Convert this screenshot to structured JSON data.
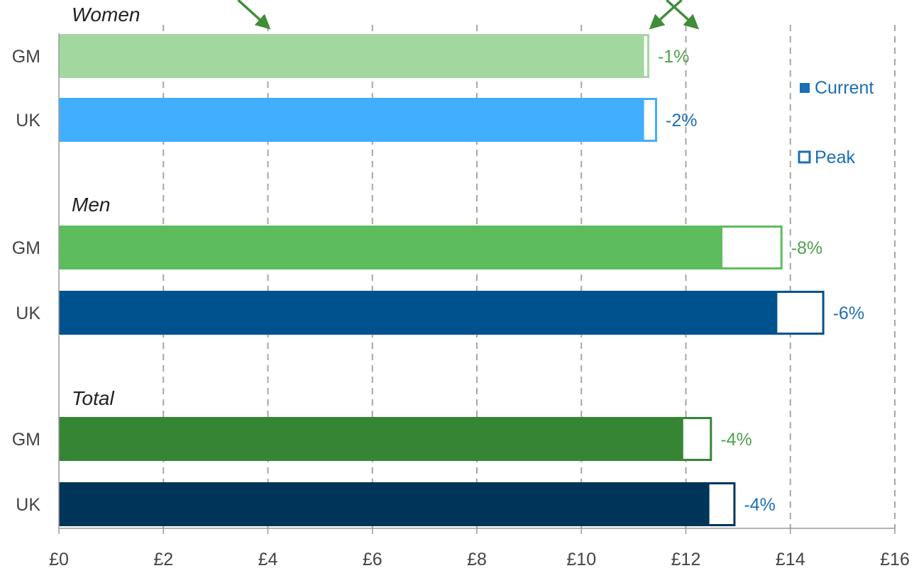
{
  "chart_data": {
    "type": "bar",
    "orientation": "horizontal",
    "xlim": [
      0,
      16
    ],
    "x_ticks": [
      0,
      2,
      4,
      6,
      8,
      10,
      12,
      14,
      16
    ],
    "x_tick_labels": [
      "£0",
      "£2",
      "£4",
      "£6",
      "£8",
      "£10",
      "£12",
      "£14",
      "£16"
    ],
    "grid": "vertical dashed",
    "legend_position": "right",
    "legend": [
      {
        "name": "Current",
        "marker": "filled"
      },
      {
        "name": "Peak",
        "marker": "outline"
      }
    ],
    "groups": [
      {
        "name": "Women",
        "bars": [
          {
            "category": "GM",
            "current": 11.2,
            "peak": 11.3,
            "change_label": "-1%",
            "color": "#a3d7a0",
            "label_color": "#4fa34a"
          },
          {
            "category": "UK",
            "current": 11.2,
            "peak": 11.45,
            "change_label": "-2%",
            "color": "#42aefe",
            "label_color": "#1f6fb2"
          }
        ]
      },
      {
        "name": "Men",
        "bars": [
          {
            "category": "GM",
            "current": 12.7,
            "peak": 13.85,
            "change_label": "-8%",
            "color": "#5dbd5d",
            "label_color": "#4fa34a"
          },
          {
            "category": "UK",
            "current": 13.75,
            "peak": 14.65,
            "change_label": "-6%",
            "color": "#00528f",
            "label_color": "#1f6fb2"
          }
        ]
      },
      {
        "name": "Total",
        "bars": [
          {
            "category": "GM",
            "current": 11.95,
            "peak": 12.5,
            "change_label": "-4%",
            "color": "#358535",
            "label_color": "#4fa34a"
          },
          {
            "category": "UK",
            "current": 12.45,
            "peak": 12.95,
            "change_label": "-4%",
            "color": "#003559",
            "label_color": "#1f6fb2"
          }
        ]
      }
    ],
    "annotations": [
      {
        "type": "arrow",
        "color": "#3f8d3a",
        "points_to_x": 4.0,
        "group": "Women"
      },
      {
        "type": "arrow",
        "color": "#3f8d3a",
        "points_to_x": 11.35,
        "group": "Women"
      },
      {
        "type": "arrow",
        "color": "#3f8d3a",
        "points_to_x": 12.2,
        "group": "Women"
      }
    ],
    "legend_colors": {
      "marker": "#1a6fb5",
      "text": "#1a6fb5"
    }
  }
}
